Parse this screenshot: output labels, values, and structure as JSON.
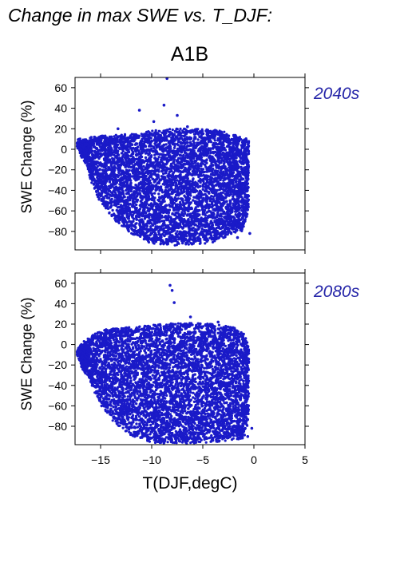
{
  "title": "Change in max SWE vs. T_DJF:",
  "scenario": "A1B",
  "colors": {
    "points": "#1a1ac8",
    "period_label": "#2424a8",
    "frame": "#000000"
  },
  "chart_data": [
    {
      "type": "scatter",
      "panel": "top",
      "annotation": "2040s",
      "ylabel": "SWE Change (%)",
      "xlabel": "",
      "xlim": [
        -17.5,
        5
      ],
      "ylim": [
        -98,
        70
      ],
      "x_ticks": [
        -15,
        -10,
        -5,
        0,
        5
      ],
      "y_ticks": [
        -80,
        -60,
        -40,
        -20,
        0,
        20,
        40,
        60
      ],
      "x_tick_labels_shown": false,
      "envelope": {
        "upper": [
          [
            -17.3,
            7
          ],
          [
            -15,
            10
          ],
          [
            -12,
            12
          ],
          [
            -10,
            15
          ],
          [
            -8,
            17
          ],
          [
            -6,
            17
          ],
          [
            -4,
            16
          ],
          [
            -2,
            13
          ],
          [
            -1,
            9
          ],
          [
            -0.5,
            7
          ]
        ],
        "lower": [
          [
            -17.3,
            3
          ],
          [
            -16.5,
            -10
          ],
          [
            -15.5,
            -40
          ],
          [
            -14,
            -62
          ],
          [
            -12,
            -78
          ],
          [
            -10,
            -88
          ],
          [
            -8,
            -90
          ],
          [
            -6,
            -89
          ],
          [
            -4,
            -87
          ],
          [
            -2.5,
            -80
          ],
          [
            -1,
            -75
          ],
          [
            -0.5,
            -55
          ],
          [
            -0.3,
            -25
          ],
          [
            -0.5,
            7
          ]
        ]
      },
      "outliers": [
        [
          -8.5,
          69
        ],
        [
          -8.8,
          43
        ],
        [
          -11.2,
          38
        ],
        [
          -7.5,
          33
        ],
        [
          -9.8,
          27
        ],
        [
          -6.5,
          22
        ],
        [
          -13.3,
          20
        ],
        [
          -3.8,
          18
        ],
        [
          -16.9,
          -4
        ],
        [
          -0.4,
          -82
        ],
        [
          -1.6,
          -86
        ],
        [
          -12.9,
          -62
        ],
        [
          -14.6,
          -55
        ]
      ]
    },
    {
      "type": "scatter",
      "panel": "bottom",
      "annotation": "2080s",
      "ylabel": "SWE Change (%)",
      "xlabel": "T(DJF,degC)",
      "xlim": [
        -17.5,
        5
      ],
      "ylim": [
        -98,
        70
      ],
      "x_ticks": [
        -15,
        -10,
        -5,
        0,
        5
      ],
      "x_tick_labels": [
        "−15",
        "−10",
        "−5",
        "0",
        "5"
      ],
      "y_ticks": [
        -80,
        -60,
        -40,
        -20,
        0,
        20,
        40,
        60
      ],
      "x_tick_labels_shown": true,
      "envelope": {
        "upper": [
          [
            -17.3,
            -6
          ],
          [
            -16,
            6
          ],
          [
            -14.5,
            12
          ],
          [
            -12,
            14
          ],
          [
            -10,
            16
          ],
          [
            -8,
            18
          ],
          [
            -6,
            18
          ],
          [
            -4,
            17
          ],
          [
            -2,
            14
          ],
          [
            -0.8,
            6
          ],
          [
            -0.5,
            -5
          ]
        ],
        "lower": [
          [
            -17.3,
            -10
          ],
          [
            -16.5,
            -25
          ],
          [
            -15.5,
            -45
          ],
          [
            -14,
            -70
          ],
          [
            -12,
            -85
          ],
          [
            -10,
            -92
          ],
          [
            -8,
            -93
          ],
          [
            -6,
            -93
          ],
          [
            -4,
            -92
          ],
          [
            -2.5,
            -90
          ],
          [
            -1,
            -88
          ],
          [
            -0.5,
            -70
          ],
          [
            -0.3,
            -40
          ],
          [
            -0.5,
            -5
          ]
        ]
      },
      "outliers": [
        [
          -8.2,
          58
        ],
        [
          -8.0,
          53
        ],
        [
          -7.8,
          41
        ],
        [
          -6.2,
          27
        ],
        [
          -3.5,
          22
        ],
        [
          -16.8,
          -12
        ],
        [
          -16.6,
          -25
        ],
        [
          -0.2,
          -82
        ],
        [
          -0.6,
          -90
        ],
        [
          -14.9,
          -60
        ],
        [
          -13.5,
          -75
        ]
      ]
    }
  ]
}
